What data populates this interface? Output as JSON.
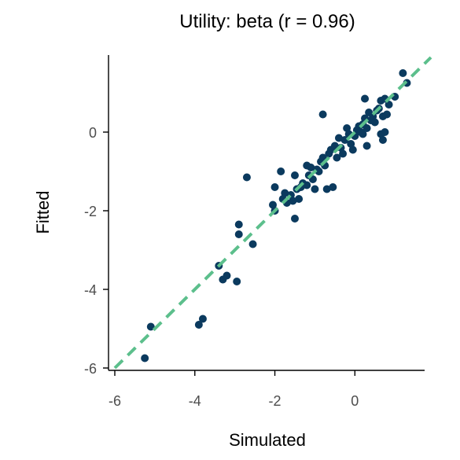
{
  "chart_data": {
    "type": "scatter",
    "title": "Utility: beta (r = 0.96)",
    "xlabel": "Simulated",
    "ylabel": "Fitted",
    "xlim": [
      -6,
      1.9
    ],
    "ylim": [
      -6,
      1.9
    ],
    "xticks": [
      -6,
      -4,
      -2,
      0
    ],
    "yticks": [
      -6,
      -4,
      -2,
      0
    ],
    "grid": false,
    "colors": {
      "points": "#0b3a5e",
      "reference_line": "#5cbf8c"
    },
    "reference_line": {
      "style": "dashed",
      "slope": 1,
      "intercept": 0
    },
    "points": [
      [
        -5.25,
        -5.75
      ],
      [
        -5.1,
        -4.95
      ],
      [
        -3.9,
        -4.9
      ],
      [
        -3.8,
        -4.75
      ],
      [
        -3.4,
        -3.4
      ],
      [
        -3.3,
        -3.75
      ],
      [
        -3.2,
        -3.65
      ],
      [
        -2.95,
        -3.8
      ],
      [
        -2.9,
        -2.35
      ],
      [
        -2.9,
        -2.6
      ],
      [
        -2.55,
        -2.85
      ],
      [
        -2.7,
        -1.15
      ],
      [
        -2.05,
        -1.85
      ],
      [
        -2.0,
        -2.0
      ],
      [
        -2.0,
        -1.4
      ],
      [
        -1.85,
        -1.0
      ],
      [
        -1.8,
        -1.7
      ],
      [
        -1.75,
        -1.55
      ],
      [
        -1.7,
        -1.8
      ],
      [
        -1.6,
        -1.6
      ],
      [
        -1.55,
        -1.75
      ],
      [
        -1.5,
        -2.2
      ],
      [
        -1.5,
        -1.1
      ],
      [
        -1.45,
        -1.45
      ],
      [
        -1.4,
        -1.7
      ],
      [
        -1.35,
        -1.4
      ],
      [
        -1.3,
        -1.3
      ],
      [
        -1.2,
        -1.35
      ],
      [
        -1.2,
        -0.85
      ],
      [
        -1.15,
        -1.1
      ],
      [
        -1.1,
        -0.9
      ],
      [
        -1.05,
        -1.2
      ],
      [
        -1.0,
        -1.45
      ],
      [
        -0.95,
        -0.95
      ],
      [
        -0.9,
        -1.0
      ],
      [
        -0.85,
        -0.75
      ],
      [
        -0.8,
        -0.65
      ],
      [
        -0.8,
        0.45
      ],
      [
        -0.75,
        -0.85
      ],
      [
        -0.7,
        -1.45
      ],
      [
        -0.65,
        -0.55
      ],
      [
        -0.6,
        -0.45
      ],
      [
        -0.55,
        -1.4
      ],
      [
        -0.5,
        -0.35
      ],
      [
        -0.45,
        -0.65
      ],
      [
        -0.4,
        -0.15
      ],
      [
        -0.35,
        -0.4
      ],
      [
        -0.3,
        -0.55
      ],
      [
        -0.25,
        -0.2
      ],
      [
        -0.2,
        0.1
      ],
      [
        -0.15,
        -0.05
      ],
      [
        -0.1,
        -0.3
      ],
      [
        -0.05,
        -0.45
      ],
      [
        0.0,
        -0.1
      ],
      [
        0.05,
        0.05
      ],
      [
        0.1,
        0.15
      ],
      [
        0.15,
        0.0
      ],
      [
        0.2,
        -0.05
      ],
      [
        0.2,
        0.2
      ],
      [
        0.25,
        0.35
      ],
      [
        0.25,
        0.85
      ],
      [
        0.3,
        0.1
      ],
      [
        0.3,
        -0.35
      ],
      [
        0.35,
        0.5
      ],
      [
        0.4,
        0.3
      ],
      [
        0.45,
        0.4
      ],
      [
        0.5,
        0.25
      ],
      [
        0.55,
        0.55
      ],
      [
        0.6,
        0.6
      ],
      [
        0.65,
        0.8
      ],
      [
        0.7,
        0.4
      ],
      [
        0.7,
        -0.2
      ],
      [
        0.75,
        0.0
      ],
      [
        0.75,
        0.85
      ],
      [
        0.8,
        0.45
      ],
      [
        0.85,
        0.7
      ],
      [
        1.0,
        0.9
      ],
      [
        1.2,
        1.5
      ],
      [
        1.3,
        1.25
      ],
      [
        0.65,
        -0.05
      ]
    ]
  }
}
